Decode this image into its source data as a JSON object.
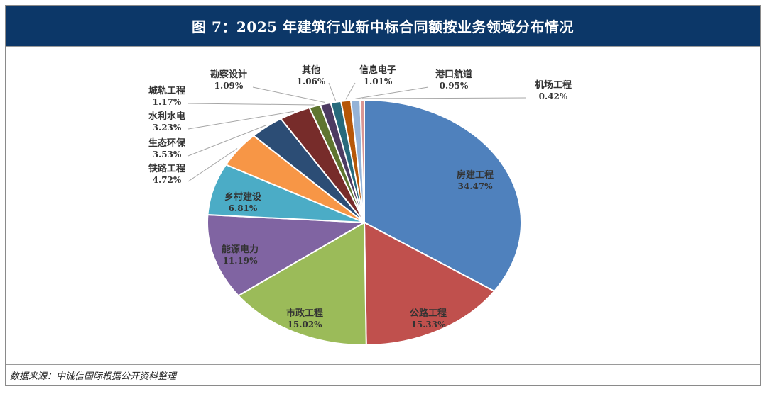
{
  "title": "图 7：2025 年建筑行业新中标合同额按业务领域分布情况",
  "source": "数据来源：中诚信国际根据公开资料整理",
  "chart_data": {
    "type": "pie",
    "unit": "%",
    "slices": [
      {
        "label": "房建工程",
        "value": 34.47,
        "value_text": "34.47%",
        "color": "#4f81bd"
      },
      {
        "label": "公路工程",
        "value": 15.33,
        "value_text": "15.33%",
        "color": "#c0504d"
      },
      {
        "label": "市政工程",
        "value": 15.02,
        "value_text": "15.02%",
        "color": "#9bbb59"
      },
      {
        "label": "能源电力",
        "value": 11.19,
        "value_text": "11.19%",
        "color": "#8064a2"
      },
      {
        "label": "乡村建设",
        "value": 6.81,
        "value_text": "6.81%",
        "color": "#4bacc6"
      },
      {
        "label": "铁路工程",
        "value": 4.72,
        "value_text": "4.72%",
        "color": "#f79646"
      },
      {
        "label": "生态环保",
        "value": 3.53,
        "value_text": "3.53%",
        "color": "#2c4d75"
      },
      {
        "label": "水利水电",
        "value": 3.23,
        "value_text": "3.23%",
        "color": "#772c2a"
      },
      {
        "label": "城轨工程",
        "value": 1.17,
        "value_text": "1.17%",
        "color": "#5f7530"
      },
      {
        "label": "勘察设计",
        "value": 1.09,
        "value_text": "1.09%",
        "color": "#4d3b62"
      },
      {
        "label": "其他",
        "value": 1.06,
        "value_text": "1.06%",
        "color": "#276a7c"
      },
      {
        "label": "信息电子",
        "value": 1.01,
        "value_text": "1.01%",
        "color": "#b65708"
      },
      {
        "label": "港口航道",
        "value": 0.95,
        "value_text": "0.95%",
        "color": "#95b3d7"
      },
      {
        "label": "机场工程",
        "value": 0.42,
        "value_text": "0.42%",
        "color": "#d99694"
      }
    ]
  }
}
